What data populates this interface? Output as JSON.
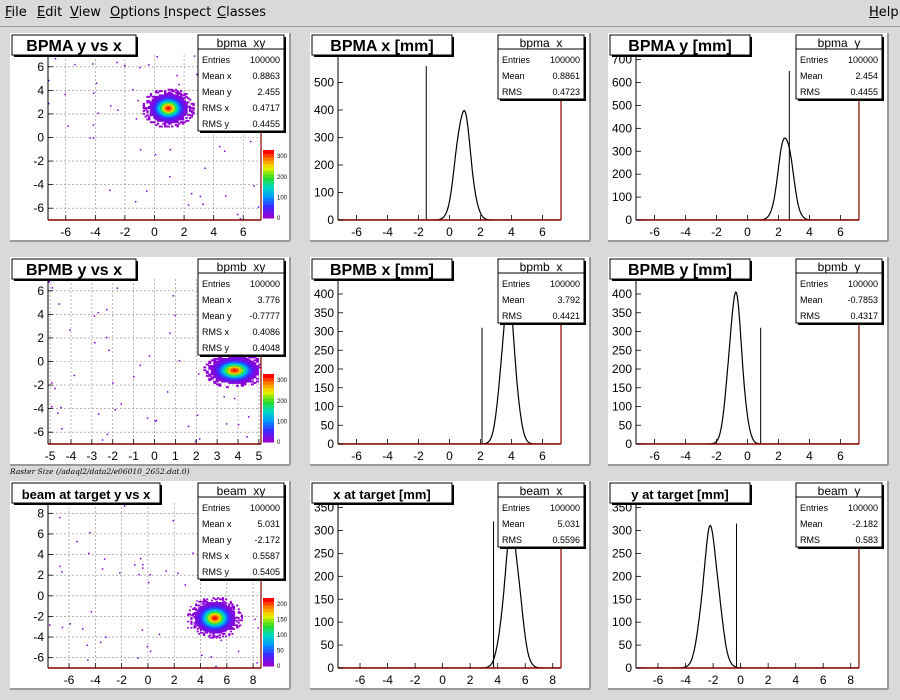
{
  "menubar": {
    "items": [
      {
        "label": "File",
        "mnemonic": "F"
      },
      {
        "label": "Edit",
        "mnemonic": "E"
      },
      {
        "label": "View",
        "mnemonic": "V"
      },
      {
        "label": "Options",
        "mnemonic": "O"
      },
      {
        "label": "Inspect",
        "mnemonic": "I"
      },
      {
        "label": "Classes",
        "mnemonic": "C"
      }
    ],
    "help": {
      "label": "Help",
      "mnemonic": "H"
    }
  },
  "canvas_label": "Raster Size (/adaql2/data2/e06010_2652.dat.0)",
  "chart_data": [
    {
      "type": "heatmap",
      "title": "BPMA y vs x",
      "stats": {
        "name": "bpma_xy",
        "rows": [
          [
            "Entries",
            "100000"
          ],
          [
            "Mean x",
            "0.8863"
          ],
          [
            "Mean y",
            "2.455"
          ],
          [
            "RMS x",
            "0.4717"
          ],
          [
            "RMS y",
            "0.4455"
          ]
        ]
      },
      "xlim": [
        -7.2,
        7.2
      ],
      "ylim": [
        -7,
        7
      ],
      "xticks": [
        -6,
        -4,
        -2,
        0,
        2,
        4,
        6
      ],
      "yticks": [
        -6,
        -4,
        -2,
        0,
        2,
        4,
        6
      ],
      "grid": true,
      "blobs": [
        {
          "cx": 0.8863,
          "cy": 2.455,
          "sx": 0.4717,
          "sy": 0.4455
        }
      ],
      "palette_ticks": [
        0,
        100,
        200,
        300
      ]
    },
    {
      "type": "histogram",
      "title": "BPMA x [mm]",
      "stats": {
        "name": "bpma_x",
        "rows": [
          [
            "Entries",
            "100000"
          ],
          [
            "Mean",
            "0.8861"
          ],
          [
            "RMS",
            "0.4723"
          ]
        ]
      },
      "xlim": [
        -7.2,
        7.2
      ],
      "ylim": [
        0,
        600
      ],
      "xticks": [
        -6,
        -4,
        -2,
        0,
        2,
        4,
        6
      ],
      "yticks": [
        0,
        100,
        200,
        300,
        400,
        500
      ],
      "peaks": [
        {
          "mu": 0.8861,
          "sigma": 0.4723,
          "height": 400
        }
      ],
      "spikes": [
        {
          "x": -1.5,
          "height": 560
        }
      ]
    },
    {
      "type": "histogram",
      "title": "BPMA y [mm]",
      "stats": {
        "name": "bpma_y",
        "rows": [
          [
            "Entries",
            "100000"
          ],
          [
            "Mean",
            "2.454"
          ],
          [
            "RMS",
            "0.4455"
          ]
        ]
      },
      "xlim": [
        -7.2,
        7.2
      ],
      "ylim": [
        0,
        720
      ],
      "xticks": [
        -6,
        -4,
        -2,
        0,
        2,
        4,
        6
      ],
      "yticks": [
        0,
        100,
        200,
        300,
        400,
        500,
        600,
        700
      ],
      "peaks": [
        {
          "mu": 2.454,
          "sigma": 0.4455,
          "height": 370
        }
      ],
      "spikes": [
        {
          "x": 2.7,
          "height": 650
        }
      ]
    },
    {
      "type": "heatmap",
      "title": "BPMB y vs x",
      "stats": {
        "name": "bpmb_xy",
        "rows": [
          [
            "Entries",
            "100000"
          ],
          [
            "Mean x",
            "3.776"
          ],
          [
            "Mean y",
            "-0.7777"
          ],
          [
            "RMS x",
            "0.4086"
          ],
          [
            "RMS y",
            "0.4048"
          ]
        ]
      },
      "xlim": [
        -5.1,
        5.1
      ],
      "ylim": [
        -7,
        7
      ],
      "xticks": [
        -5,
        -4,
        -3,
        -2,
        -1,
        0,
        1,
        2,
        3,
        4,
        5
      ],
      "yticks": [
        -6,
        -4,
        -2,
        0,
        2,
        4,
        6
      ],
      "grid": true,
      "blobs": [
        {
          "cx": 3.776,
          "cy": -0.7777,
          "sx": 0.4086,
          "sy": 0.4048
        }
      ],
      "palette_ticks": [
        0,
        100,
        200,
        300
      ]
    },
    {
      "type": "histogram",
      "title": "BPMB x [mm]",
      "stats": {
        "name": "bpmb_x",
        "rows": [
          [
            "Entries",
            "100000"
          ],
          [
            "Mean",
            "3.792"
          ],
          [
            "RMS",
            "0.4421"
          ]
        ]
      },
      "xlim": [
        -7.2,
        7.2
      ],
      "ylim": [
        0,
        440
      ],
      "xticks": [
        -6,
        -4,
        -2,
        0,
        2,
        4,
        6
      ],
      "yticks": [
        0,
        50,
        100,
        150,
        200,
        250,
        300,
        350,
        400
      ],
      "peaks": [
        {
          "mu": 3.792,
          "sigma": 0.4421,
          "height": 390
        }
      ],
      "spikes": [
        {
          "x": 2.1,
          "height": 310
        }
      ]
    },
    {
      "type": "histogram",
      "title": "BPMB y [mm]",
      "stats": {
        "name": "bpmb_y",
        "rows": [
          [
            "Entries",
            "100000"
          ],
          [
            "Mean",
            "-0.7853"
          ],
          [
            "RMS",
            "0.4317"
          ]
        ]
      },
      "xlim": [
        -7.2,
        7.2
      ],
      "ylim": [
        0,
        440
      ],
      "xticks": [
        -6,
        -4,
        -2,
        0,
        2,
        4,
        6
      ],
      "yticks": [
        0,
        50,
        100,
        150,
        200,
        250,
        300,
        350,
        400
      ],
      "peaks": [
        {
          "mu": -0.7853,
          "sigma": 0.4317,
          "height": 395
        }
      ],
      "spikes": [
        {
          "x": 0.85,
          "height": 310
        }
      ]
    },
    {
      "type": "heatmap",
      "title": "beam at target y vs x",
      "stats": {
        "name": "beam_xy",
        "rows": [
          [
            "Entries",
            "100000"
          ],
          [
            "Mean x",
            "5.031"
          ],
          [
            "Mean y",
            "-2.172"
          ],
          [
            "RMS x",
            "0.5587"
          ],
          [
            "RMS y",
            "0.5405"
          ]
        ]
      },
      "xlim": [
        -7.6,
        8.6
      ],
      "ylim": [
        -7,
        9
      ],
      "xticks": [
        -6,
        -4,
        -2,
        0,
        2,
        4,
        6,
        8
      ],
      "yticks": [
        -6,
        -4,
        -2,
        0,
        2,
        4,
        6,
        8
      ],
      "grid": true,
      "blobs": [
        {
          "cx": 5.031,
          "cy": -2.172,
          "sx": 0.5587,
          "sy": 0.5405
        }
      ],
      "palette_ticks": [
        0,
        50,
        100,
        150,
        200
      ]
    },
    {
      "type": "histogram",
      "title": "x at target [mm]",
      "stats": {
        "name": "beam_x",
        "rows": [
          [
            "Entries",
            "100000"
          ],
          [
            "Mean",
            "5.031"
          ],
          [
            "RMS",
            "0.5596"
          ]
        ]
      },
      "xlim": [
        -7.6,
        8.6
      ],
      "ylim": [
        0,
        360
      ],
      "xticks": [
        -6,
        -4,
        -2,
        0,
        2,
        4,
        6,
        8
      ],
      "yticks": [
        0,
        50,
        100,
        150,
        200,
        250,
        300,
        350
      ],
      "peaks": [
        {
          "mu": 5.031,
          "sigma": 0.5596,
          "height": 300
        }
      ],
      "spikes": [
        {
          "x": 3.7,
          "height": 320
        }
      ]
    },
    {
      "type": "histogram",
      "title": "y at target [mm]",
      "stats": {
        "name": "beam_y",
        "rows": [
          [
            "Entries",
            "100000"
          ],
          [
            "Mean",
            "-2.182"
          ],
          [
            "RMS",
            "0.583"
          ]
        ]
      },
      "xlim": [
        -7.6,
        8.6
      ],
      "ylim": [
        0,
        360
      ],
      "xticks": [
        -6,
        -4,
        -2,
        0,
        2,
        4,
        6,
        8
      ],
      "yticks": [
        0,
        50,
        100,
        150,
        200,
        250,
        300,
        350
      ],
      "peaks": [
        {
          "mu": -2.182,
          "sigma": 0.583,
          "height": 300
        }
      ],
      "spikes": [
        {
          "x": -0.3,
          "height": 315
        }
      ]
    }
  ]
}
